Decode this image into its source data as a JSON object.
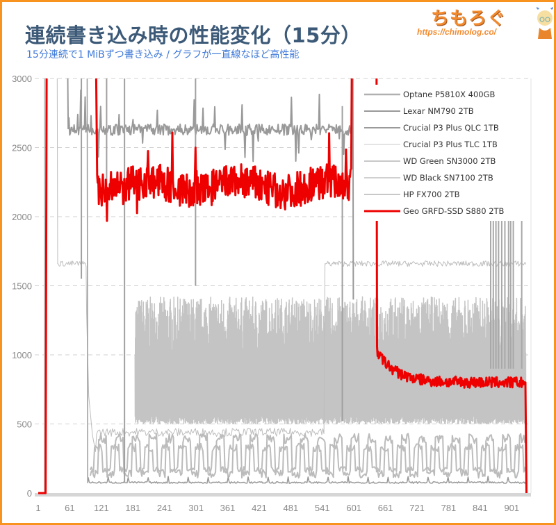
{
  "header": {
    "title": "連続書き込み時の性能変化（15分）",
    "subtitle": "15分連続で1 MiBずつ書き込み  /  グラフが一直線なほど高性能"
  },
  "logo": {
    "text": "ちもろぐ",
    "url": "https://chimolog.co/"
  },
  "colors": {
    "frame": "#f7931e",
    "title": "#3c5a78",
    "subtitle": "#3d78d8",
    "highlight": "#ee0000",
    "gray_series": "#aaaaaa",
    "grid": "#cccccc"
  },
  "chart_data": {
    "type": "line",
    "title": "連続書き込み時の性能変化（15分）",
    "subtitle": "15分連続で1 MiBずつ書き込み / グラフが一直線なほど高性能",
    "xlabel": "",
    "ylabel": "",
    "x_ticks": [
      1,
      61,
      121,
      181,
      241,
      301,
      361,
      421,
      481,
      541,
      601,
      661,
      721,
      781,
      841,
      901
    ],
    "y_ticks": [
      0,
      500,
      1000,
      1500,
      2000,
      2500,
      3000
    ],
    "xlim": [
      1,
      930
    ],
    "ylim": [
      0,
      3000
    ],
    "grid": "horizontal dashed",
    "legend_position": "upper right (inside)",
    "series": [
      {
        "name": "Optane P5810X 400GB",
        "color": "#b0b0b0",
        "width": 2.5,
        "approx": "pegged above 3000 whole run (off-scale)",
        "x": [
          1,
          18,
          20,
          930
        ],
        "values": [
          0,
          0,
          3000,
          3000
        ]
      },
      {
        "name": "Lexar NM790 2TB",
        "color": "#999999",
        "width": 2,
        "approx": "~2620 from t≈65 to t≈600 with spikes, then ~75 baseline",
        "x": [
          1,
          62,
          65,
          600,
          603,
          930
        ],
        "values": [
          0,
          3000,
          2620,
          2640,
          75,
          75
        ]
      },
      {
        "name": "Crucial P3 Plus QLC 1TB",
        "color": "#9a9a9a",
        "width": 1.5,
        "approx": "~75 baseline after t≈95 with small periodic bumps",
        "x": [
          1,
          93,
          96,
          930
        ],
        "values": [
          3000,
          3000,
          75,
          75
        ]
      },
      {
        "name": "Crucial P3 Plus TLC 1TB",
        "color": "#bdbdbd",
        "width": 1,
        "approx": "~1660 until t≈95, dip to ~300 then ~430 until t≈545, then ~1660 to end",
        "x": [
          1,
          40,
          42,
          93,
          100,
          110,
          120,
          545,
          547,
          930
        ],
        "values": [
          3000,
          3000,
          1660,
          1660,
          680,
          300,
          430,
          430,
          1660,
          1660
        ]
      },
      {
        "name": "WD Green SN3000 2TB",
        "color": "#bbbbbb",
        "width": 2,
        "approx": "oscillating between ~80 and ~430 from t≈100 to end",
        "x": [
          100,
          930
        ],
        "values": [
          250,
          250
        ]
      },
      {
        "name": "WD Black SN7100 2TB",
        "color": "#c4c4c4",
        "width": 1.5,
        "approx": "dense oscillation ~500–1420 from t≈185 to end",
        "x": [
          185,
          930
        ],
        "values": [
          950,
          950
        ]
      },
      {
        "name": "HP FX700 2TB",
        "color": "#bdbdbd",
        "width": 2,
        "approx": "oscillating between ~130 and ~350 from t≈100",
        "x": [
          100,
          930
        ],
        "values": [
          230,
          230
        ]
      },
      {
        "name": "Geo GRFD-SSD S880 2TB",
        "color": "#ee0000",
        "width": 3,
        "approx": "off-scale until t≈111, then ~2150–2400 (range 1900–2650) until t≈597, ~3000+ until t≈645, drops to ~1000 and settles ~800 to t≈928, then 0",
        "x": [
          1,
          15,
          18,
          111,
          114,
          150,
          200,
          250,
          300,
          350,
          400,
          450,
          500,
          550,
          597,
          645,
          648,
          660,
          700,
          750,
          800,
          850,
          900,
          927,
          930
        ],
        "values": [
          0,
          0,
          3000,
          3000,
          2200,
          2300,
          2220,
          2180,
          2250,
          2220,
          2260,
          2230,
          2280,
          2230,
          2240,
          2000,
          1000,
          950,
          880,
          850,
          810,
          820,
          810,
          800,
          0
        ]
      }
    ]
  },
  "legend": {
    "items": [
      {
        "label": "Optane P5810X 400GB",
        "color": "#b0b0b0",
        "width": 2.5
      },
      {
        "label": "Lexar NM790 2TB",
        "color": "#999999",
        "width": 2
      },
      {
        "label": "Crucial P3 Plus QLC 1TB",
        "color": "#9a9a9a",
        "width": 2
      },
      {
        "label": "Crucial P3 Plus TLC 1TB",
        "color": "#c8c8c8",
        "width": 1
      },
      {
        "label": "WD Green SN3000 2TB",
        "color": "#b5b5b5",
        "width": 1.5
      },
      {
        "label": "WD Black SN7100 2TB",
        "color": "#c0c0c0",
        "width": 1.5
      },
      {
        "label": "HP FX700 2TB",
        "color": "#b5b5b5",
        "width": 1.5
      },
      {
        "label": "Geo GRFD-SSD S880 2TB",
        "color": "#ee0000",
        "width": 3
      }
    ]
  }
}
